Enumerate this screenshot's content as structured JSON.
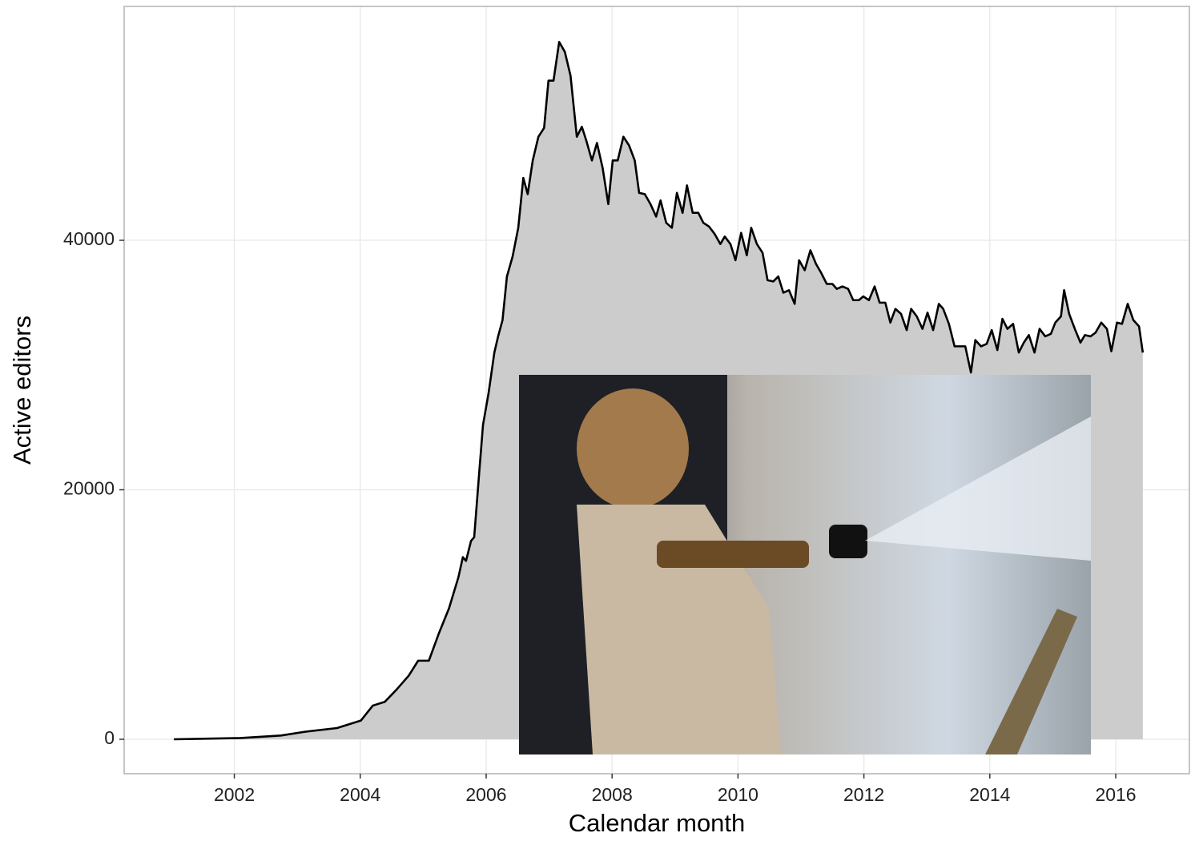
{
  "chart_data": {
    "type": "area",
    "x_label": "Calendar month",
    "y_label": "Active editors",
    "color": "#cccccc",
    "line_color": "#000000",
    "grid": true,
    "xlim": [
      2000.25,
      2017.17
    ],
    "xticks": [
      2002,
      2004,
      2006,
      2008,
      2010,
      2012,
      2014,
      2016
    ],
    "ylim": [
      -2761,
      58748
    ],
    "yticks": [
      0,
      20000,
      40000
    ],
    "x": [
      2001.04,
      2002.1,
      2002.74,
      2003.12,
      2003.63,
      2004.01,
      2004.2,
      2004.39,
      2004.58,
      2004.77,
      2004.92,
      2005.09,
      2005.25,
      2005.41,
      2005.56,
      2005.63,
      2005.68,
      2005.76,
      2005.81,
      2005.89,
      2005.95,
      2006.04,
      2006.13,
      2006.19,
      2006.26,
      2006.33,
      2006.42,
      2006.51,
      2006.59,
      2006.66,
      2006.74,
      2006.83,
      2006.92,
      2006.99,
      2007.07,
      2007.16,
      2007.25,
      2007.34,
      2007.44,
      2007.52,
      2007.59,
      2007.68,
      2007.76,
      2007.85,
      2007.94,
      2008.01,
      2008.09,
      2008.18,
      2008.27,
      2008.36,
      2008.43,
      2008.52,
      2008.61,
      2008.7,
      2008.77,
      2008.86,
      2008.95,
      2009.03,
      2009.12,
      2009.19,
      2009.28,
      2009.37,
      2009.45,
      2009.54,
      2009.63,
      2009.72,
      2009.79,
      2009.88,
      2009.96,
      2010.05,
      2010.14,
      2010.21,
      2010.3,
      2010.39,
      2010.47,
      2010.56,
      2010.64,
      2010.72,
      2010.81,
      2010.9,
      2010.97,
      2011.06,
      2011.15,
      2011.24,
      2011.32,
      2011.41,
      2011.5,
      2011.57,
      2011.66,
      2011.75,
      2011.83,
      2011.92,
      2011.99,
      2012.08,
      2012.17,
      2012.25,
      2012.34,
      2012.42,
      2012.5,
      2012.59,
      2012.68,
      2012.75,
      2012.84,
      2012.93,
      2013.01,
      2013.1,
      2013.19,
      2013.26,
      2013.35,
      2013.44,
      2013.52,
      2013.61,
      2013.7,
      2013.77,
      2013.86,
      2013.95,
      2014.03,
      2014.12,
      2014.2,
      2014.28,
      2014.37,
      2014.46,
      2014.54,
      2014.62,
      2014.71,
      2014.79,
      2014.88,
      2014.97,
      2015.04,
      2015.13,
      2015.18,
      2015.26,
      2015.35,
      2015.44,
      2015.51,
      2015.6,
      2015.68,
      2015.77,
      2015.86,
      2015.93,
      2016.02,
      2016.1,
      2016.19,
      2016.28,
      2016.37,
      2016.43
    ],
    "values": [
      0,
      100,
      300,
      600,
      900,
      1500,
      2700,
      3000,
      4000,
      5100,
      6300,
      6300,
      8500,
      10500,
      13000,
      14600,
      14300,
      15900,
      16200,
      21400,
      25200,
      27800,
      31000,
      32300,
      33600,
      37100,
      38700,
      41000,
      45000,
      43700,
      46400,
      48300,
      49000,
      52800,
      52800,
      55900,
      55100,
      53200,
      48300,
      49100,
      48000,
      46400,
      47800,
      45800,
      42900,
      46400,
      46400,
      48300,
      47600,
      46400,
      43800,
      43700,
      42900,
      41900,
      43200,
      41400,
      41000,
      43800,
      42200,
      44400,
      42200,
      42200,
      41400,
      41100,
      40500,
      39700,
      40300,
      39700,
      38400,
      40600,
      38800,
      41000,
      39700,
      39000,
      36800,
      36700,
      37100,
      35800,
      36000,
      34900,
      38400,
      37600,
      39200,
      38100,
      37400,
      36500,
      36500,
      36100,
      36300,
      36100,
      35200,
      35200,
      35500,
      35200,
      36300,
      35000,
      35000,
      33400,
      34500,
      34100,
      32800,
      34500,
      33900,
      32900,
      34200,
      32800,
      34900,
      34500,
      33300,
      31500,
      31500,
      31500,
      29400,
      32000,
      31500,
      31700,
      32800,
      31200,
      33700,
      32900,
      33300,
      31000,
      31800,
      32400,
      31000,
      32900,
      32300,
      32500,
      33400,
      33900,
      36000,
      34100,
      32900,
      31800,
      32400,
      32300,
      32600,
      33400,
      32900,
      31100,
      33400,
      33300,
      34900,
      33600,
      33100,
      31000
    ]
  }
}
